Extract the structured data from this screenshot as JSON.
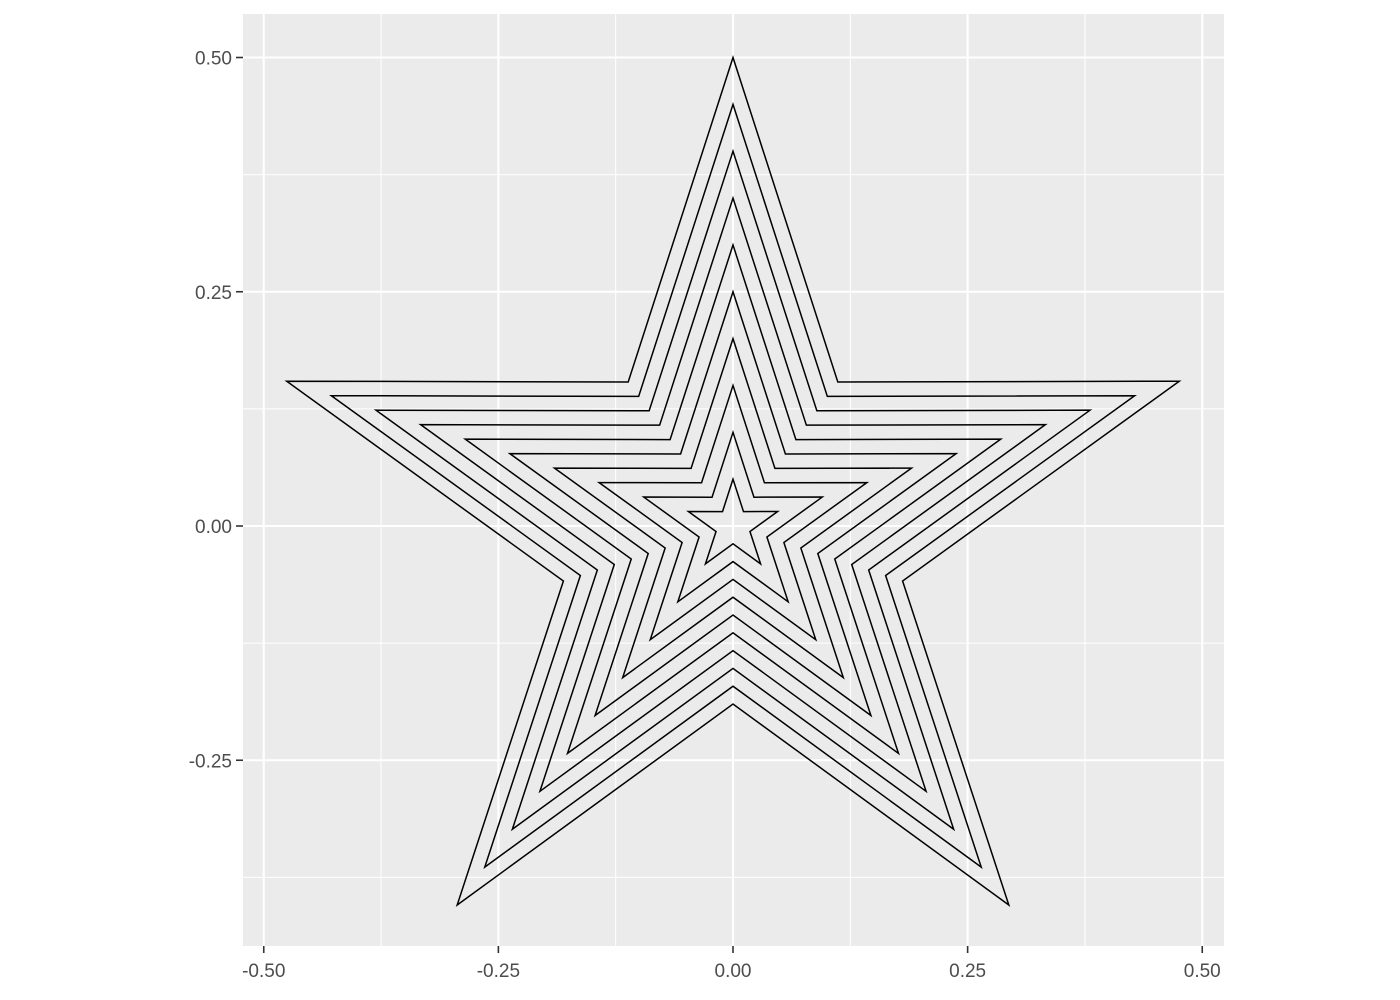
{
  "chart_data": {
    "type": "line",
    "title": "",
    "xlabel": "",
    "ylabel": "",
    "xlim": [
      -0.52,
      0.52
    ],
    "ylim": [
      -0.45,
      0.545
    ],
    "x_ticks": [
      -0.5,
      -0.25,
      0,
      0.25,
      0.5
    ],
    "x_tick_labels": [
      "-0.50",
      "-0.25",
      "0.00",
      "0.25",
      "0.50"
    ],
    "y_ticks": [
      -0.25,
      0,
      0.25,
      0.5
    ],
    "y_tick_labels": [
      "-0.25",
      "0.00",
      "0.25",
      "0.50"
    ],
    "x_minor": [
      -0.375,
      -0.125,
      0.125,
      0.375
    ],
    "y_minor": [
      -0.375,
      -0.125,
      0.125,
      0.375
    ],
    "grid": true,
    "legend": "none",
    "panel_color": "#ebebeb",
    "line_color": "#000000",
    "series": [
      {
        "outer_radius": 0.5,
        "inner_radius": 0.19
      },
      {
        "outer_radius": 0.45,
        "inner_radius": 0.171
      },
      {
        "outer_radius": 0.4,
        "inner_radius": 0.152
      },
      {
        "outer_radius": 0.35,
        "inner_radius": 0.133
      },
      {
        "outer_radius": 0.3,
        "inner_radius": 0.114
      },
      {
        "outer_radius": 0.25,
        "inner_radius": 0.095
      },
      {
        "outer_radius": 0.2,
        "inner_radius": 0.076
      },
      {
        "outer_radius": 0.15,
        "inner_radius": 0.057
      },
      {
        "outer_radius": 0.1,
        "inner_radius": 0.038
      },
      {
        "outer_radius": 0.05,
        "inner_radius": 0.019
      }
    ]
  }
}
